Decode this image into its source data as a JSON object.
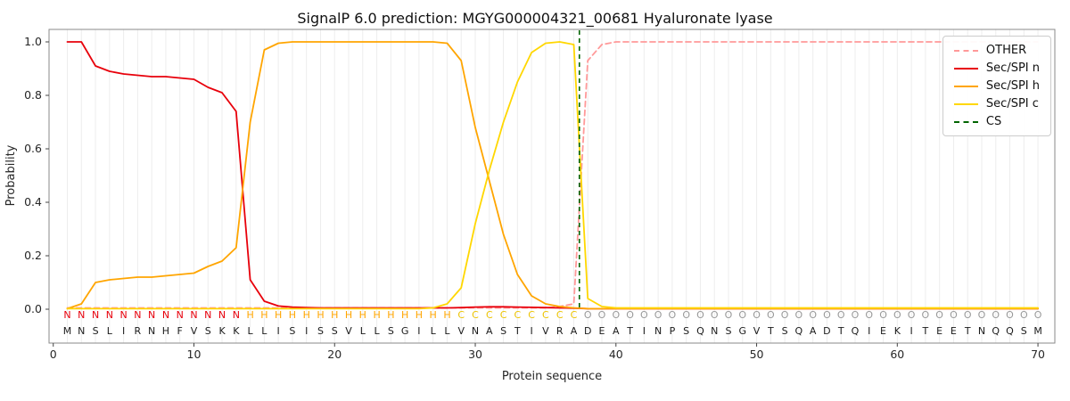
{
  "title": "SignalP 6.0 prediction: MGYG000004321_00681 Hyaluronate lyase",
  "legend": {
    "items": [
      {
        "id": "other",
        "label": "OTHER",
        "color": "#ff9999",
        "dash": true
      },
      {
        "id": "sec-spi-n",
        "label": "Sec/SPI n",
        "color": "#e8000b",
        "dash": false
      },
      {
        "id": "sec-spi-h",
        "label": "Sec/SPI h",
        "color": "#ffa500",
        "dash": false
      },
      {
        "id": "sec-spi-c",
        "label": "Sec/SPI c",
        "color": "#ffd700",
        "dash": false
      },
      {
        "id": "cs",
        "label": "CS",
        "color": "#006400",
        "dash": true
      }
    ]
  },
  "chart_data": {
    "type": "line",
    "title": "SignalP 6.0 prediction: MGYG000004321_00681 Hyaluronate lyase",
    "xlabel": "Protein sequence",
    "ylabel": "Probability",
    "xlim": [
      -0.3,
      71.2
    ],
    "ylim": [
      -0.15,
      1.05
    ],
    "x_ticks": [
      0,
      10,
      20,
      30,
      40,
      50,
      60,
      70
    ],
    "y_ticks": [
      0.0,
      0.2,
      0.4,
      0.6,
      0.8,
      1.0
    ],
    "grid": "vertical line per residue, light gray",
    "legend_position": "upper right",
    "cs_position": 37.4,
    "cs_color": "#006400",
    "sequence": "MNSLIRNHFVSKKLLISISSVLLSGILLVNASTIVRADEATINPSQNSGVTSQADTQIEKITEETNQQSM",
    "region_labels": "NNNNNNNNNNNNNHHHHHHHHHHHHHHHCCCCCCCCCOOOOOOOOOOOOOOOOOOOOOOOOOOOOOOOOO",
    "region_colors": {
      "N": "#e8000b",
      "H": "#ffa500",
      "C": "#edc400",
      "O": "#999999"
    },
    "sequence_color": "#1a1a1a",
    "series": [
      {
        "id": "other",
        "name": "OTHER",
        "color": "#ff9999",
        "dashed": true,
        "values": [
          0.005,
          0.005,
          0.005,
          0.005,
          0.005,
          0.005,
          0.005,
          0.005,
          0.005,
          0.005,
          0.005,
          0.005,
          0.005,
          0.005,
          0.005,
          0.005,
          0.005,
          0.005,
          0.005,
          0.005,
          0.005,
          0.005,
          0.005,
          0.005,
          0.005,
          0.005,
          0.005,
          0.005,
          0.005,
          0.005,
          0.005,
          0.005,
          0.005,
          0.005,
          0.005,
          0.01,
          0.02,
          0.93,
          0.99,
          1.0,
          1.0,
          1.0,
          1.0,
          1.0,
          1.0,
          1.0,
          1.0,
          1.0,
          1.0,
          1.0,
          1.0,
          1.0,
          1.0,
          1.0,
          1.0,
          1.0,
          1.0,
          1.0,
          1.0,
          1.0,
          1.0,
          1.0,
          1.0,
          1.0,
          1.0,
          1.0,
          1.0,
          1.0,
          1.0,
          1.0
        ]
      },
      {
        "id": "sec-spi-n",
        "name": "Sec/SPI n",
        "color": "#e8000b",
        "dashed": false,
        "values": [
          1.0,
          1.0,
          0.91,
          0.89,
          0.88,
          0.875,
          0.87,
          0.87,
          0.865,
          0.86,
          0.83,
          0.81,
          0.74,
          0.11,
          0.03,
          0.012,
          0.008,
          0.006,
          0.005,
          0.005,
          0.005,
          0.005,
          0.005,
          0.005,
          0.005,
          0.005,
          0.005,
          0.005,
          0.006,
          0.008,
          0.009,
          0.009,
          0.008,
          0.007,
          0.006,
          0.005,
          0.004,
          0.002,
          0.002,
          0.002,
          0.002,
          0.002,
          0.002,
          0.002,
          0.002,
          0.002,
          0.002,
          0.002,
          0.002,
          0.002,
          0.002,
          0.002,
          0.002,
          0.002,
          0.002,
          0.002,
          0.002,
          0.002,
          0.002,
          0.002,
          0.002,
          0.002,
          0.002,
          0.002,
          0.002,
          0.002,
          0.002,
          0.002,
          0.002,
          0.002
        ]
      },
      {
        "id": "sec-spi-h",
        "name": "Sec/SPI h",
        "color": "#ffa500",
        "dashed": false,
        "values": [
          0.002,
          0.02,
          0.1,
          0.11,
          0.115,
          0.12,
          0.12,
          0.125,
          0.13,
          0.135,
          0.16,
          0.18,
          0.23,
          0.7,
          0.97,
          0.995,
          1.0,
          1.0,
          1.0,
          1.0,
          1.0,
          1.0,
          1.0,
          1.0,
          1.0,
          1.0,
          1.0,
          0.995,
          0.93,
          0.68,
          0.48,
          0.28,
          0.13,
          0.05,
          0.02,
          0.01,
          0.005,
          0.002,
          0.002,
          0.002,
          0.002,
          0.002,
          0.002,
          0.002,
          0.002,
          0.002,
          0.002,
          0.002,
          0.002,
          0.002,
          0.002,
          0.002,
          0.002,
          0.002,
          0.002,
          0.002,
          0.002,
          0.002,
          0.002,
          0.002,
          0.002,
          0.002,
          0.002,
          0.002,
          0.002,
          0.002,
          0.002,
          0.002,
          0.002,
          0.002
        ]
      },
      {
        "id": "sec-spi-c",
        "name": "Sec/SPI c",
        "color": "#ffd700",
        "dashed": false,
        "values": [
          0.002,
          0.002,
          0.002,
          0.002,
          0.002,
          0.002,
          0.002,
          0.002,
          0.002,
          0.002,
          0.002,
          0.002,
          0.002,
          0.002,
          0.002,
          0.002,
          0.002,
          0.002,
          0.002,
          0.002,
          0.002,
          0.002,
          0.002,
          0.002,
          0.002,
          0.002,
          0.005,
          0.02,
          0.08,
          0.32,
          0.52,
          0.7,
          0.85,
          0.96,
          0.995,
          1.0,
          0.99,
          0.04,
          0.01,
          0.005,
          0.005,
          0.005,
          0.005,
          0.005,
          0.005,
          0.005,
          0.005,
          0.005,
          0.005,
          0.005,
          0.005,
          0.005,
          0.005,
          0.005,
          0.005,
          0.005,
          0.005,
          0.005,
          0.005,
          0.005,
          0.005,
          0.005,
          0.005,
          0.005,
          0.005,
          0.005,
          0.005,
          0.005,
          0.005,
          0.005
        ]
      }
    ]
  }
}
